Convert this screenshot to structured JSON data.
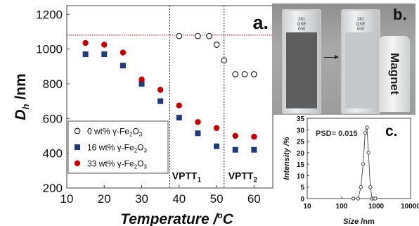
{
  "panels": {
    "a_label": "a.",
    "b_label": "b.",
    "c_label": "c."
  },
  "vial_text": [
    "281",
    "QSE",
    "000"
  ],
  "magnet_label": "Magnet",
  "colors": {
    "series0": "#111111",
    "series16": "#1f3a7a",
    "series33": "#c00000",
    "ref_line": "#b00000",
    "vial_liquid_before": "#5e5e5e",
    "vial_liquid_after": "#c6c8ca"
  },
  "chart_data": [
    {
      "type": "scatter",
      "panel": "a",
      "xlabel_main": "Temperature /",
      "xlabel_unit_sup": "o",
      "xlabel_unit": "C",
      "ylabel_main": "D",
      "ylabel_sub": "h",
      "ylabel_unit": " /nm",
      "xlim": [
        10,
        65
      ],
      "ylim": [
        200,
        1250
      ],
      "xticks": [
        10,
        20,
        30,
        40,
        50,
        60
      ],
      "yticks": [
        200,
        400,
        600,
        800,
        1000,
        1200
      ],
      "grid": false,
      "legend_position": "bottom-left",
      "reference_line_y": 1080,
      "vertical_lines_x": [
        37.5,
        52
      ],
      "region_labels": [
        {
          "main": "VPTT",
          "sub": "1",
          "x": 42
        },
        {
          "main": "VPTT",
          "sub": "2",
          "x": 57
        }
      ],
      "series": [
        {
          "name": "0 wt% γ-Fe",
          "name_sub1": "2",
          "name_mid": "O",
          "name_sub2": "3",
          "marker": "open-circle",
          "x": [
            40,
            45,
            48,
            50,
            52,
            55,
            57.5,
            60
          ],
          "y": [
            1075,
            1075,
            1075,
            1025,
            935,
            855,
            855,
            855
          ]
        },
        {
          "name": "16 wt% γ-Fe",
          "name_sub1": "2",
          "name_mid": "O",
          "name_sub2": "3",
          "marker": "filled-square",
          "x": [
            15,
            20,
            25,
            30,
            35,
            40,
            45,
            50,
            55,
            60
          ],
          "y": [
            970,
            970,
            905,
            800,
            700,
            605,
            515,
            440,
            420,
            420
          ]
        },
        {
          "name": "33 wt% γ-Fe",
          "name_sub1": "2",
          "name_mid": "O",
          "name_sub2": "3",
          "marker": "filled-circle",
          "x": [
            15,
            20,
            25,
            30,
            35,
            40,
            45,
            50,
            55,
            60
          ],
          "y": [
            1035,
            1025,
            980,
            825,
            765,
            675,
            580,
            545,
            500,
            495
          ]
        }
      ]
    },
    {
      "type": "line",
      "panel": "c",
      "xlabel_main": "Size",
      "xlabel_unit": " /nm",
      "ylabel": "Intensity /%",
      "xscale": "log",
      "xlim": [
        10,
        10000
      ],
      "ylim": [
        0,
        35
      ],
      "xticks": [
        10,
        100,
        1000,
        10000
      ],
      "yticks": [
        0,
        5,
        10,
        15,
        20,
        25,
        30,
        35
      ],
      "annotation": "PSD= 0.015",
      "x": [
        220,
        300,
        360,
        420,
        480,
        540,
        600,
        680,
        760,
        850,
        950
      ],
      "y": [
        0,
        0,
        5,
        15,
        28.5,
        31,
        20,
        5,
        0,
        0,
        0
      ]
    }
  ]
}
